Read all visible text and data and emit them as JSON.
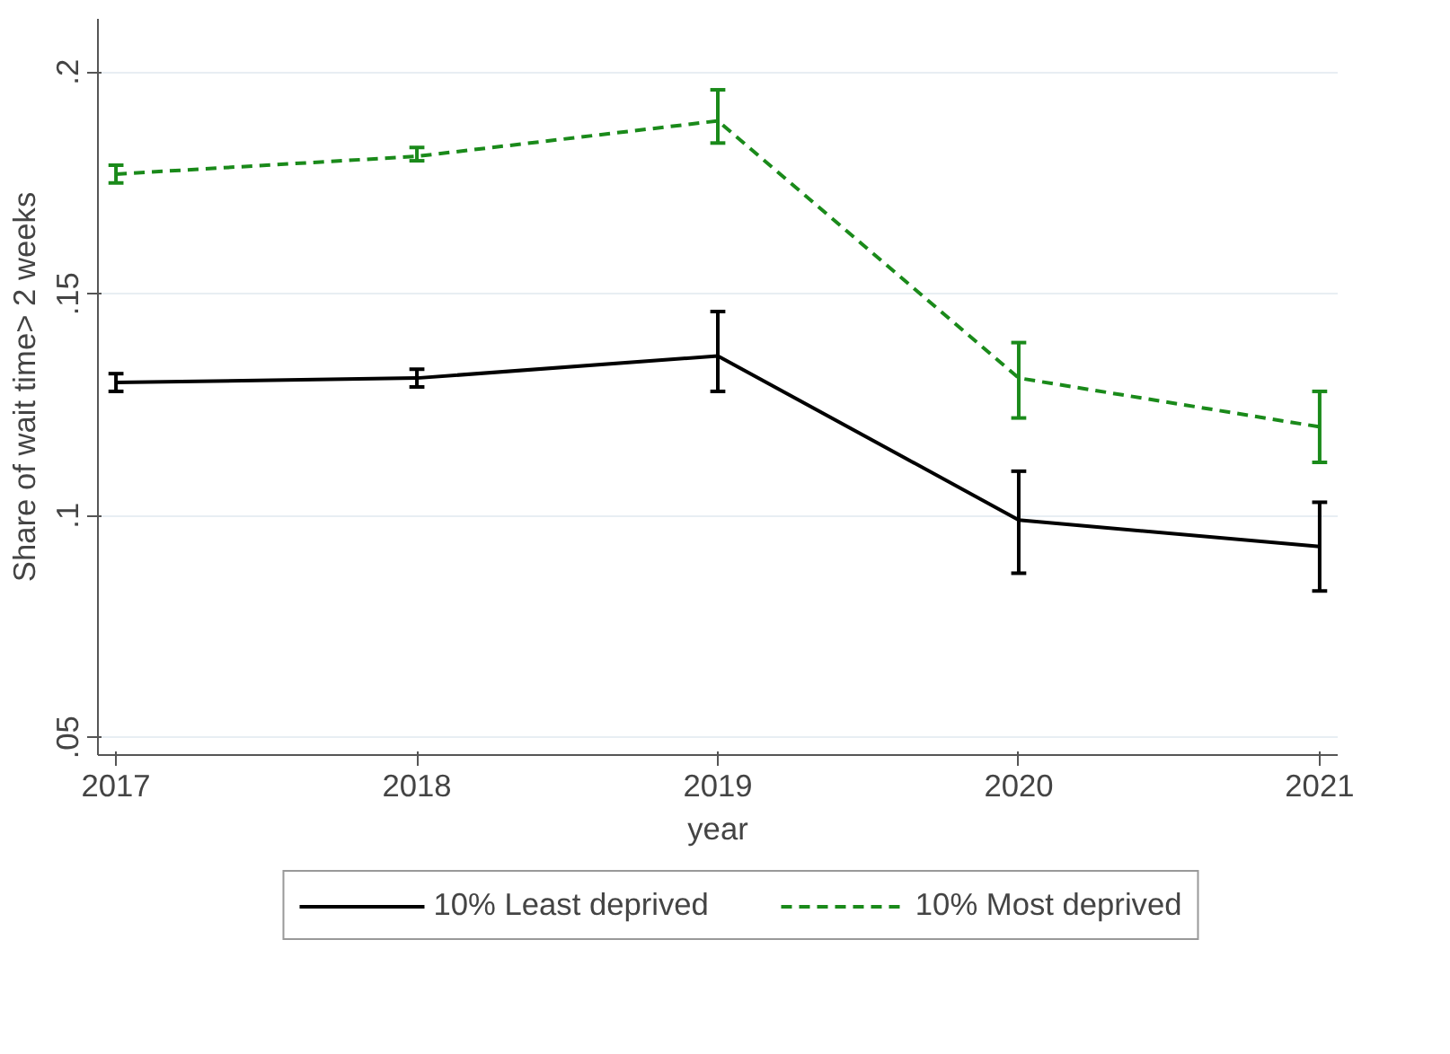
{
  "chart_data": {
    "type": "line",
    "xlabel": "year",
    "ylabel": "Share of wait time> 2 weeks",
    "x": [
      2017,
      2018,
      2019,
      2020,
      2021
    ],
    "xlim": [
      2016.94,
      2021.06
    ],
    "xticks": [
      2017,
      2018,
      2019,
      2020,
      2021
    ],
    "ylim": [
      0.046,
      0.212
    ],
    "yticks": [
      {
        "value": 0.05,
        "label": ".05"
      },
      {
        "value": 0.1,
        "label": ".1"
      },
      {
        "value": 0.15,
        "label": ".15"
      },
      {
        "value": 0.2,
        "label": ".2"
      }
    ],
    "grid": "y",
    "legend": "bottom",
    "marker": "none",
    "series": [
      {
        "name": "10% Least deprived",
        "color": "#000000",
        "line_style": "solid",
        "values": [
          0.13,
          0.131,
          0.136,
          0.099,
          0.093
        ],
        "errors": [
          [
            0.128,
            0.132
          ],
          [
            0.129,
            0.133
          ],
          [
            0.128,
            0.146
          ],
          [
            0.087,
            0.11
          ],
          [
            0.083,
            0.103
          ]
        ]
      },
      {
        "name": "10% Most deprived",
        "color": "#1a8a1a",
        "line_style": "dashed",
        "values": [
          0.177,
          0.181,
          0.189,
          0.131,
          0.12
        ],
        "errors": [
          [
            0.175,
            0.179
          ],
          [
            0.18,
            0.183
          ],
          [
            0.184,
            0.196
          ],
          [
            0.122,
            0.139
          ],
          [
            0.112,
            0.128
          ]
        ]
      }
    ]
  }
}
